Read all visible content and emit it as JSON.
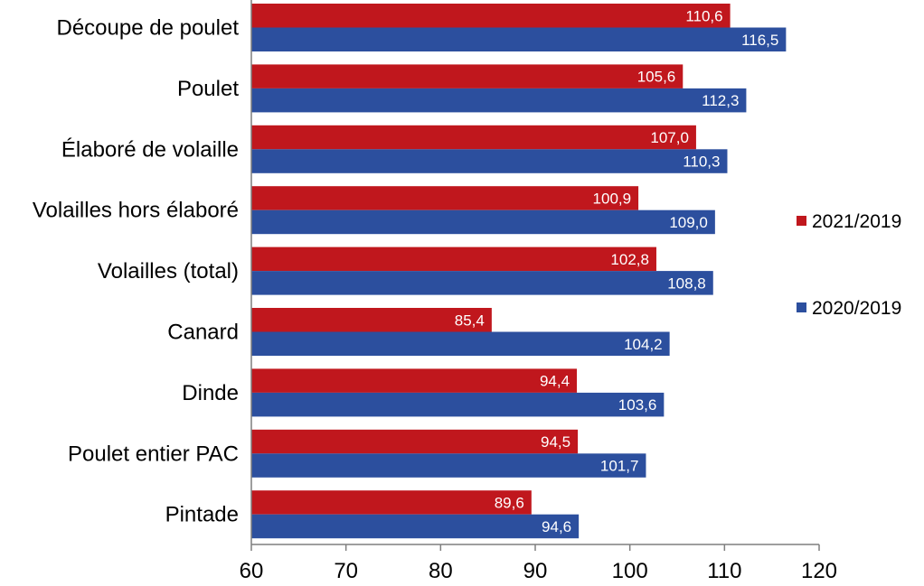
{
  "chart_data": {
    "type": "bar",
    "orientation": "horizontal",
    "title": "",
    "xlabel": "",
    "ylabel": "",
    "xlim": [
      60,
      120
    ],
    "xticks": [
      60,
      70,
      80,
      90,
      100,
      110,
      120
    ],
    "xtick_labels": [
      "60",
      "70",
      "80",
      "90",
      "100",
      "110",
      "120"
    ],
    "grid": false,
    "legend_position": "right",
    "categories": [
      "Découpe de poulet",
      "Poulet",
      "Élaboré de volaille",
      "Volailles hors élaboré",
      "Volailles (total)",
      "Canard",
      "Dinde",
      "Poulet entier PAC",
      "Pintade"
    ],
    "series": [
      {
        "name": "2021/2019",
        "color": "#c0171d",
        "values": [
          110.6,
          105.6,
          107.0,
          100.9,
          102.8,
          85.4,
          94.4,
          94.5,
          89.6
        ],
        "labels": [
          "110,6",
          "105,6",
          "107,0",
          "100,9",
          "102,8",
          "85,4",
          "94,4",
          "94,5",
          "89,6"
        ]
      },
      {
        "name": "2020/2019",
        "color": "#2c4f9e",
        "values": [
          116.5,
          112.3,
          110.3,
          109.0,
          108.8,
          104.2,
          103.6,
          101.7,
          94.6
        ],
        "labels": [
          "116,5",
          "112,3",
          "110,3",
          "109,0",
          "108,8",
          "104,2",
          "103,6",
          "101,7",
          "94,6"
        ]
      }
    ]
  }
}
